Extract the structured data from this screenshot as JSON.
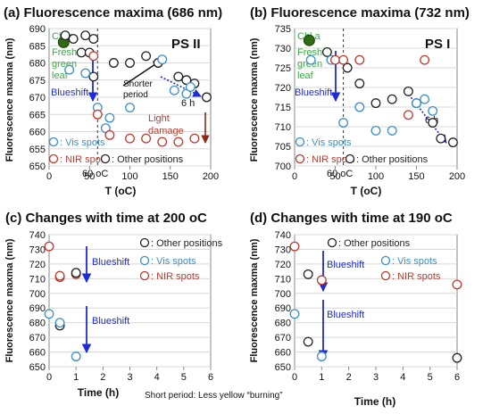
{
  "colors": {
    "vis": "#3a8ec9",
    "nir": "#c0392b",
    "other": "#222222",
    "blue_arrow": "#1f2bd6",
    "dark_red_arrow": "#8b2a16",
    "chl": "#2e6b12",
    "chl_text": "#3aa845",
    "damage_text": "#c0392b"
  },
  "chart_data": [
    {
      "type": "scatter",
      "title": "(a) Fluorescence maxima (686 nm)",
      "panel_tag": "PS II",
      "xlabel": "T (oC)",
      "ylabel": "Fluorescence maxma (nm)",
      "xlim": [
        0,
        200
      ],
      "ylim": [
        650,
        690
      ],
      "xticks": [
        "0",
        "50",
        "100",
        "150",
        "200"
      ],
      "yticks": [
        "650",
        "655",
        "660",
        "665",
        "670",
        "675",
        "680",
        "685",
        "690"
      ],
      "legend": [
        {
          "key": "vis",
          "text": "Vis spots"
        },
        {
          "key": "nir",
          "text": "NIR spots"
        },
        {
          "key": "other",
          "text": "Other positions"
        }
      ],
      "annotations": [
        "Chl a",
        "Fresh green leaf",
        "Blueshift",
        "Shorter period",
        "6 h",
        "Light damage",
        "60 oC"
      ],
      "chl_point": {
        "x": 18,
        "y": 686
      },
      "marker_line_x": 60,
      "series": [
        {
          "key": "other",
          "points": [
            [
              20,
              688
            ],
            [
              30,
              687
            ],
            [
              45,
              688
            ],
            [
              55,
              687
            ],
            [
              40,
              683
            ],
            [
              50,
              683
            ],
            [
              55,
              676
            ],
            [
              80,
              680
            ],
            [
              100,
              680
            ],
            [
              120,
              682
            ],
            [
              160,
              676
            ],
            [
              170,
              675
            ],
            [
              180,
              674
            ],
            [
              195,
              670
            ],
            [
              135,
              680
            ]
          ]
        },
        {
          "key": "vis",
          "points": [
            [
              25,
              678
            ],
            [
              45,
              677
            ],
            [
              75,
              664
            ],
            [
              100,
              667
            ],
            [
              140,
              681
            ],
            [
              155,
              672
            ],
            [
              170,
              671
            ],
            [
              175,
              673
            ],
            [
              60,
              667
            ],
            [
              70,
              661
            ]
          ]
        },
        {
          "key": "nir",
          "points": [
            [
              55,
              682
            ],
            [
              60,
              665
            ],
            [
              75,
              659
            ],
            [
              100,
              658
            ],
            [
              120,
              658
            ],
            [
              140,
              657
            ],
            [
              160,
              657
            ],
            [
              180,
              658
            ]
          ]
        }
      ]
    },
    {
      "type": "scatter",
      "title": "(b) Fluorescence maxima (732 nm)",
      "panel_tag": "PS I",
      "xlabel": "T (oC)",
      "ylabel": "Fluorescence maxma (nm)",
      "xlim": [
        0,
        200
      ],
      "ylim": [
        700,
        735
      ],
      "xticks": [
        "0",
        "50",
        "100",
        "150",
        "200"
      ],
      "yticks": [
        "700",
        "705",
        "710",
        "715",
        "720",
        "725",
        "730",
        "735"
      ],
      "legend": [
        {
          "key": "vis",
          "text": "Vis spots"
        },
        {
          "key": "nir",
          "text": "NIR spots"
        },
        {
          "key": "other",
          "text": "Other positions"
        }
      ],
      "annotations": [
        "Chl a",
        "Fresh green leaf",
        "Blueshift",
        "6 h",
        "60 oC"
      ],
      "chl_point": {
        "x": 18,
        "y": 732
      },
      "marker_line_x": 60,
      "series": [
        {
          "key": "other",
          "points": [
            [
              40,
              729
            ],
            [
              65,
              725
            ],
            [
              80,
              721
            ],
            [
              100,
              716
            ],
            [
              120,
              717
            ],
            [
              140,
              719
            ],
            [
              150,
              716
            ],
            [
              170,
              711
            ],
            [
              180,
              707
            ],
            [
              195,
              706
            ]
          ]
        },
        {
          "key": "vis",
          "points": [
            [
              20,
              727
            ],
            [
              45,
              727
            ],
            [
              60,
              711
            ],
            [
              80,
              715
            ],
            [
              100,
              709
            ],
            [
              120,
              709
            ],
            [
              150,
              716
            ],
            [
              160,
              717
            ],
            [
              170,
              714
            ]
          ]
        },
        {
          "key": "nir",
          "points": [
            [
              50,
              727
            ],
            [
              60,
              727
            ],
            [
              80,
              727
            ],
            [
              140,
              713
            ],
            [
              160,
              727
            ]
          ]
        }
      ]
    },
    {
      "type": "scatter",
      "title": "(c) Changes with time at 200 oC",
      "xlabel": "Time (h)",
      "ylabel": "Fluorescence maxma (nm)",
      "xlim": [
        0,
        6
      ],
      "ylim": [
        650,
        740
      ],
      "xticks": [
        "0",
        "1",
        "2",
        "3",
        "4",
        "5",
        "6"
      ],
      "yticks": [
        "650",
        "660",
        "670",
        "680",
        "690",
        "700",
        "710",
        "720",
        "730",
        "740"
      ],
      "legend": [
        {
          "key": "other",
          "text": "Other positions"
        },
        {
          "key": "vis",
          "text": "Vis spots"
        },
        {
          "key": "nir",
          "text": "NIR spots"
        }
      ],
      "annotations": [
        "Blueshift",
        "Blueshift",
        "Short period: Less yellow “burning”"
      ],
      "series": [
        {
          "key": "nir",
          "points": [
            [
              0,
              732
            ],
            [
              0.4,
              711
            ],
            [
              0.4,
              712
            ],
            [
              1,
              713
            ]
          ]
        },
        {
          "key": "other",
          "points": [
            [
              0.4,
              678
            ],
            [
              1,
              714
            ]
          ]
        },
        {
          "key": "vis",
          "points": [
            [
              0,
              686
            ],
            [
              0.4,
              680
            ],
            [
              1,
              657
            ]
          ]
        }
      ]
    },
    {
      "type": "scatter",
      "title": "(d) Changes with time at 190 oC",
      "xlabel": "Time (h)",
      "ylabel": "Fluorescence maxma (nm)",
      "xlim": [
        0,
        6
      ],
      "ylim": [
        650,
        740
      ],
      "xticks": [
        "0",
        "1",
        "2",
        "3",
        "4",
        "5",
        "6"
      ],
      "yticks": [
        "650",
        "660",
        "670",
        "680",
        "690",
        "700",
        "710",
        "720",
        "730",
        "740"
      ],
      "legend": [
        {
          "key": "other",
          "text": "Other positions"
        },
        {
          "key": "vis",
          "text": "Vis spots"
        },
        {
          "key": "nir",
          "text": "NIR spots"
        }
      ],
      "annotations": [
        "Blueshift",
        "Blueshift"
      ],
      "series": [
        {
          "key": "nir",
          "points": [
            [
              0,
              732
            ],
            [
              1,
              709
            ],
            [
              6,
              706
            ]
          ]
        },
        {
          "key": "other",
          "points": [
            [
              0.5,
              713
            ],
            [
              0.5,
              667
            ],
            [
              6,
              656
            ]
          ]
        },
        {
          "key": "vis",
          "points": [
            [
              0,
              686
            ],
            [
              1,
              657
            ]
          ]
        }
      ]
    }
  ]
}
